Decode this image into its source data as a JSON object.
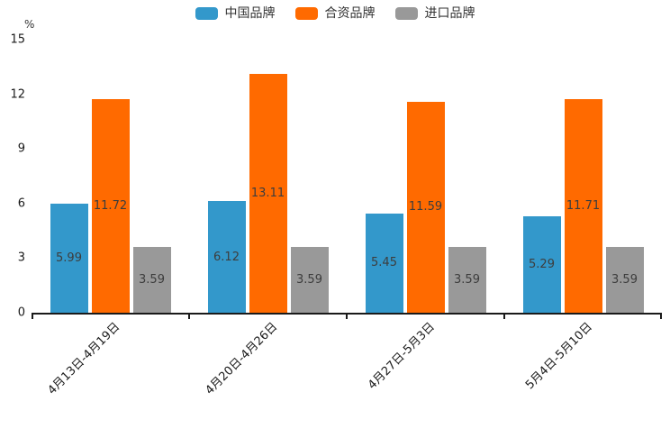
{
  "chart_data": {
    "type": "bar",
    "categories": [
      "4月13日-4月19日",
      "4月20日-4月26日",
      "4月27日-5月3日",
      "5月4日-5月10日"
    ],
    "series": [
      {
        "name": "中国品牌",
        "color": "#3398cb",
        "values": [
          5.99,
          6.12,
          5.45,
          5.29
        ]
      },
      {
        "name": "合资品牌",
        "color": "#ff6a00",
        "values": [
          11.72,
          13.11,
          11.59,
          11.71
        ]
      },
      {
        "name": "进口品牌",
        "color": "#999999",
        "values": [
          3.59,
          3.59,
          3.59,
          3.59
        ]
      }
    ],
    "title": "",
    "xlabel": "",
    "ylabel": "%",
    "ylim": [
      0,
      15
    ],
    "yticks": [
      0,
      3,
      6,
      9,
      12,
      15
    ],
    "legend_position": "top",
    "grid": "off",
    "value_labels": "inside-center",
    "axis_color": "#1a1a1a",
    "label_color": "#3d3d3d"
  }
}
